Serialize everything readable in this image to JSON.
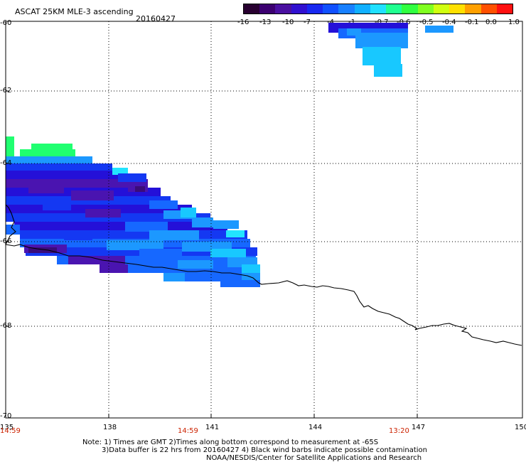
{
  "header": {
    "title": "ASCAT 25KM MLE-3 ascending",
    "date": "20160427"
  },
  "colorbar": {
    "labels": [
      "-16",
      "-13",
      "-10",
      "-7",
      "-4",
      "-1",
      "-0.7",
      "-0.6",
      "-0.5",
      "-0.4",
      "-0.1",
      "0.0",
      "1.0"
    ],
    "colors": [
      "#280030",
      "#3c0070",
      "#4a10a0",
      "#3010d0",
      "#1828f0",
      "#1050ff",
      "#1880ff",
      "#10b0ff",
      "#20e0ff",
      "#20ff90",
      "#30ff40",
      "#80ff20",
      "#d0ff10",
      "#ffe000",
      "#ffa000",
      "#ff5000",
      "#ff1010"
    ]
  },
  "map": {
    "lat_labels": [
      "-60",
      "-62",
      "-64",
      "-66",
      "-68",
      "-70"
    ],
    "lon_labels": [
      "135",
      "138",
      "141",
      "144",
      "147",
      "150"
    ],
    "time_labels": [
      "14:59",
      "14:59",
      "13:20"
    ]
  },
  "footer": {
    "line1": "Note: 1) Times are GMT 2)Times along bottom correspond to measurement at -65S",
    "line2": "3)Data buffer is 22 hrs from 20160427 4) Black wind barbs indicate possible contamination",
    "line3": "NOAA/NESDIS/Center for Satellite Applications and Research"
  }
}
